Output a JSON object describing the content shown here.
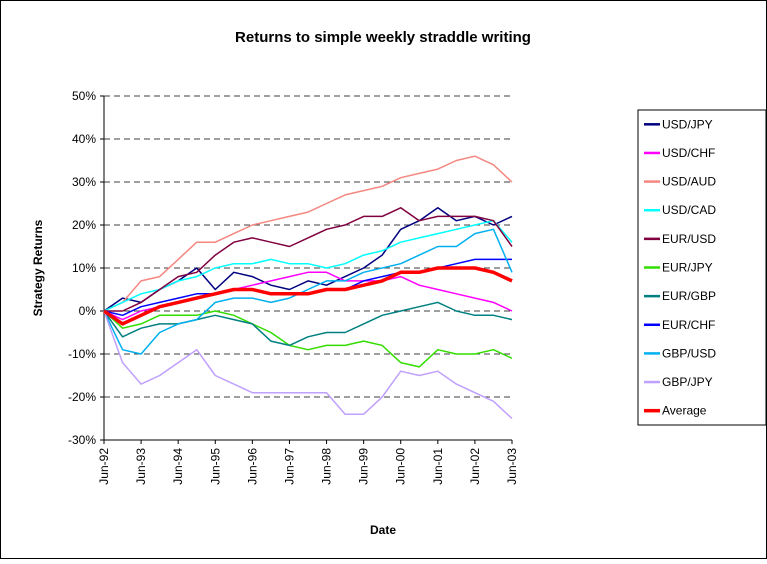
{
  "chart_data": {
    "type": "line",
    "title": "Returns to simple weekly straddle writing",
    "x_label": "Date",
    "y_label": "Strategy Returns",
    "categories": [
      "Jun-92",
      null,
      "Jun-93",
      null,
      "Jun-94",
      null,
      "Jun-95",
      null,
      "Jun-96",
      null,
      "Jun-97",
      null,
      "Jun-98",
      null,
      "Jun-99",
      null,
      "Jun-00",
      null,
      "Jun-01",
      null,
      "Jun-02",
      null,
      "Jun-03"
    ],
    "ylim": [
      -30,
      50
    ],
    "yticks": [
      {
        "value": -30,
        "label": "-30%"
      },
      {
        "value": -20,
        "label": "-20%"
      },
      {
        "value": -10,
        "label": "-10%"
      },
      {
        "value": 0,
        "label": "0%"
      },
      {
        "value": 10,
        "label": "10%"
      },
      {
        "value": 20,
        "label": "20%"
      },
      {
        "value": 30,
        "label": "30%"
      },
      {
        "value": 40,
        "label": "40%"
      },
      {
        "value": 50,
        "label": "50%"
      }
    ],
    "grid": true,
    "legend": "right",
    "series": [
      {
        "name": "USD/JPY",
        "color": "#000080",
        "values": [
          0,
          3,
          2,
          5,
          7,
          10,
          5,
          9,
          8,
          6,
          5,
          7,
          6,
          8,
          10,
          13,
          19,
          21,
          24,
          21,
          22,
          20,
          22
        ]
      },
      {
        "name": "USD/CHF",
        "color": "#ff00ff",
        "values": [
          0,
          -2,
          0,
          1,
          2,
          3,
          4,
          5,
          6,
          7,
          8,
          9,
          9,
          7,
          7,
          7,
          8,
          6,
          5,
          4,
          3,
          2,
          0
        ]
      },
      {
        "name": "USD/AUD",
        "color": "#f4877f",
        "values": [
          0,
          2,
          7,
          8,
          12,
          16,
          16,
          18,
          20,
          21,
          22,
          23,
          25,
          27,
          28,
          29,
          31,
          32,
          33,
          35,
          36,
          34,
          30
        ]
      },
      {
        "name": "USD/CAD",
        "color": "#00ffff",
        "values": [
          0,
          2,
          4,
          5,
          7,
          8,
          10,
          11,
          11,
          12,
          11,
          11,
          10,
          11,
          13,
          14,
          16,
          17,
          18,
          19,
          20,
          21,
          16
        ]
      },
      {
        "name": "EUR/USD",
        "color": "#800040",
        "values": [
          0,
          0,
          2,
          5,
          8,
          9,
          13,
          16,
          17,
          16,
          15,
          17,
          19,
          20,
          22,
          22,
          24,
          21,
          22,
          22,
          22,
          21,
          15
        ]
      },
      {
        "name": "EUR/JPY",
        "color": "#33dd00",
        "values": [
          0,
          -4,
          -3,
          -1,
          -1,
          -1,
          0,
          -1,
          -3,
          -5,
          -8,
          -9,
          -8,
          -8,
          -7,
          -8,
          -12,
          -13,
          -9,
          -10,
          -10,
          -9,
          -11
        ]
      },
      {
        "name": "EUR/GBP",
        "color": "#008080",
        "values": [
          0,
          -6,
          -4,
          -3,
          -3,
          -2,
          -1,
          -2,
          -3,
          -7,
          -8,
          -6,
          -5,
          -5,
          -3,
          -1,
          0,
          1,
          2,
          0,
          -1,
          -1,
          -2
        ]
      },
      {
        "name": "EUR/CHF",
        "color": "#0000ff",
        "values": [
          0,
          -1,
          1,
          2,
          3,
          4,
          4,
          5,
          5,
          4,
          4,
          4,
          5,
          5,
          7,
          8,
          9,
          9,
          10,
          11,
          12,
          12,
          12
        ]
      },
      {
        "name": "GBP/USD",
        "color": "#00b0f0",
        "values": [
          0,
          -9,
          -10,
          -5,
          -3,
          -2,
          2,
          3,
          3,
          2,
          3,
          5,
          7,
          7,
          9,
          10,
          11,
          13,
          15,
          15,
          18,
          19,
          9
        ]
      },
      {
        "name": "GBP/JPY",
        "color": "#c0a0ff",
        "values": [
          0,
          -12,
          -17,
          -15,
          -12,
          -9,
          -15,
          -17,
          -19,
          -19,
          -19,
          -19,
          -19,
          -24,
          -24,
          -20,
          -14,
          -15,
          -14,
          -17,
          -19,
          -21,
          -25
        ]
      },
      {
        "name": "Average",
        "color": "#ff0000",
        "line_width": 3.5,
        "values": [
          0,
          -3,
          -1,
          1,
          2,
          3,
          4,
          5,
          5,
          4,
          4,
          4,
          5,
          5,
          6,
          7,
          9,
          9,
          10,
          10,
          10,
          9,
          7
        ]
      }
    ]
  }
}
